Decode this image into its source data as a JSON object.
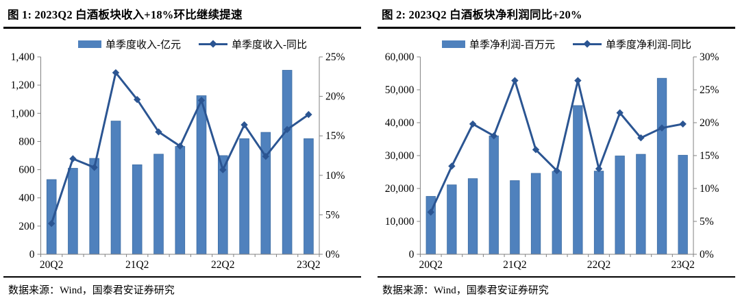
{
  "theme": {
    "bar_color": "#4F81BD",
    "bar_border_color": "#3D6DA3",
    "line_color": "#2B5592",
    "axis_color": "#808080",
    "text_color": "#000000"
  },
  "figures": [
    {
      "source": "数据来源：Wind，国泰君安证券研究"
    },
    {
      "source": "数据来源：Wind，国泰君安证券研究"
    }
  ],
  "chart_data": [
    {
      "type": "bar",
      "title": "图 1:  2023Q2 白酒板块收入+18%环比继续提速",
      "categories": [
        "20Q2",
        "20Q3",
        "20Q4",
        "21Q1",
        "21Q2",
        "21Q3",
        "21Q4",
        "22Q1",
        "22Q2",
        "22Q3",
        "22Q4",
        "23Q1",
        "23Q2"
      ],
      "x_label_indices": [
        0,
        4,
        8,
        12
      ],
      "x_tick_labels": [
        "20Q2",
        "21Q2",
        "22Q2",
        "23Q2"
      ],
      "series": [
        {
          "name": "单季度收入-亿元",
          "kind": "bar",
          "axis": "left",
          "values": [
            530,
            610,
            680,
            945,
            635,
            710,
            765,
            1125,
            700,
            820,
            865,
            1305,
            820
          ]
        },
        {
          "name": "单季度收入-同比",
          "kind": "line",
          "axis": "right",
          "values": [
            3.9,
            12.1,
            11.0,
            23.0,
            19.6,
            15.5,
            13.7,
            19.5,
            10.7,
            16.4,
            12.4,
            15.8,
            17.7
          ]
        }
      ],
      "left_axis": {
        "min": 0,
        "max": 1400,
        "step": 200,
        "format": "thousands"
      },
      "right_axis": {
        "min": 0,
        "max": 25,
        "step": 5,
        "format": "percent"
      },
      "legend_position": "top",
      "grid": false
    },
    {
      "type": "bar",
      "title": "图 2:  2023Q2 白酒板块净利润同比+20%",
      "categories": [
        "20Q2",
        "20Q3",
        "20Q4",
        "21Q1",
        "21Q2",
        "21Q3",
        "21Q4",
        "22Q1",
        "22Q2",
        "22Q3",
        "22Q4",
        "23Q1",
        "23Q2"
      ],
      "x_label_indices": [
        0,
        4,
        8,
        12
      ],
      "x_tick_labels": [
        "20Q2",
        "21Q2",
        "22Q2",
        "23Q2"
      ],
      "series": [
        {
          "name": "单季净利润-百万元",
          "kind": "bar",
          "axis": "left",
          "values": [
            17600,
            21100,
            23000,
            36000,
            22400,
            24600,
            25200,
            45200,
            25300,
            29900,
            30400,
            53500,
            30100
          ]
        },
        {
          "name": "单季度净利润-同比",
          "kind": "line",
          "axis": "right",
          "values": [
            6.4,
            13.4,
            19.8,
            18.0,
            26.4,
            15.9,
            12.7,
            26.4,
            13.0,
            21.5,
            17.7,
            19.2,
            19.8
          ]
        }
      ],
      "left_axis": {
        "min": 0,
        "max": 60000,
        "step": 10000,
        "format": "thousands"
      },
      "right_axis": {
        "min": 0,
        "max": 30,
        "step": 5,
        "format": "percent"
      },
      "legend_position": "top",
      "grid": false
    }
  ]
}
